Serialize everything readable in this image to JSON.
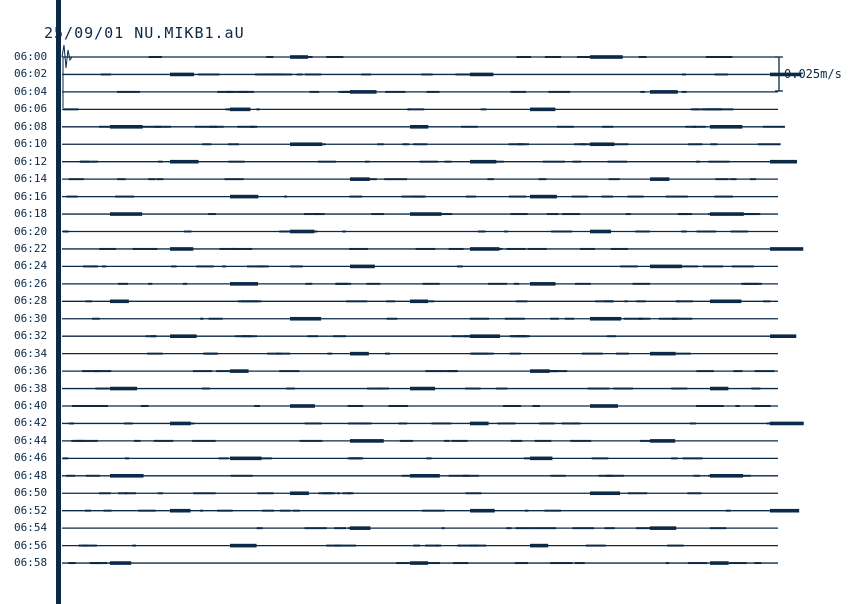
{
  "title": "25/09/01  NU.MIKB1.aU",
  "scale_label": "0.025m/s",
  "colors": {
    "trace": "#0b2a48",
    "background": "#ffffff"
  },
  "chart_data": {
    "type": "line",
    "title": "25/09/01  NU.MIKB1.aU",
    "row_labels": [
      "06:00",
      "06:02",
      "06:04",
      "06:06",
      "06:08",
      "06:10",
      "06:12",
      "06:14",
      "06:16",
      "06:18",
      "06:20",
      "06:22",
      "06:24",
      "06:26",
      "06:28",
      "06:30",
      "06:32",
      "06:34",
      "06:36",
      "06:38",
      "06:40",
      "06:42",
      "06:44",
      "06:46",
      "06:48",
      "06:50",
      "06:52",
      "06:54",
      "06:56",
      "06:58"
    ],
    "minutes_per_row": 2,
    "scale_bar": "0.025m/s"
  }
}
